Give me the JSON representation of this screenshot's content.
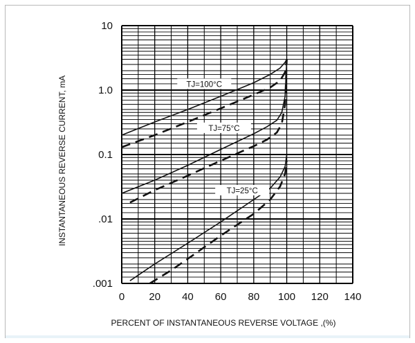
{
  "chart_data": {
    "type": "line",
    "title": "",
    "xlabel": "PERCENT OF INSTANTANEOUS REVERSE VOLTAGE ,(%)",
    "ylabel": "INSTANTANEOUS REVERSE CURRENT, mA",
    "xlim": [
      0,
      140
    ],
    "ylim": [
      0.001,
      10
    ],
    "yscale": "log",
    "grid": true,
    "x_ticks": [
      "0",
      "20",
      "40",
      "60",
      "80",
      "100",
      "120",
      "140"
    ],
    "y_ticks": [
      ".001",
      ".01",
      "0.1",
      "1.0",
      "10"
    ],
    "annotations": [
      "TJ=100°C",
      "TJ=75°C",
      "TJ=25°C"
    ],
    "series": [
      {
        "label": "TJ=100°C",
        "style": "solid",
        "x": [
          0,
          20,
          40,
          60,
          80,
          90,
          96,
          99,
          100
        ],
        "y": [
          0.2,
          0.32,
          0.5,
          0.8,
          1.3,
          1.75,
          2.2,
          2.7,
          3.0
        ]
      },
      {
        "label": "TJ=100°C",
        "style": "dashed",
        "x": [
          0,
          20,
          40,
          60,
          80,
          90,
          96,
          99,
          100
        ],
        "y": [
          0.13,
          0.2,
          0.32,
          0.52,
          0.85,
          1.1,
          1.4,
          1.9,
          3.0
        ]
      },
      {
        "label": "TJ=75°C",
        "style": "solid",
        "x": [
          0,
          20,
          40,
          60,
          80,
          88,
          94,
          97,
          99,
          100
        ],
        "y": [
          0.025,
          0.04,
          0.068,
          0.12,
          0.21,
          0.27,
          0.34,
          0.45,
          0.8,
          3.0
        ]
      },
      {
        "label": "TJ=75°C",
        "style": "dashed",
        "x": [
          5,
          20,
          40,
          60,
          80,
          88,
          94,
          97,
          99,
          100
        ],
        "y": [
          0.018,
          0.028,
          0.047,
          0.08,
          0.135,
          0.17,
          0.22,
          0.3,
          0.6,
          3.0
        ]
      },
      {
        "label": "TJ=25°C",
        "style": "solid",
        "x": [
          5,
          20,
          40,
          60,
          80,
          90,
          96,
          99,
          100
        ],
        "y": [
          0.0011,
          0.002,
          0.0042,
          0.009,
          0.02,
          0.03,
          0.045,
          0.065,
          0.1
        ]
      },
      {
        "label": "TJ=25°C",
        "style": "dashed",
        "x": [
          17,
          30,
          40,
          60,
          80,
          90,
          96,
          99,
          100
        ],
        "y": [
          0.001,
          0.0016,
          0.0024,
          0.0055,
          0.012,
          0.02,
          0.032,
          0.05,
          0.08
        ]
      }
    ]
  }
}
